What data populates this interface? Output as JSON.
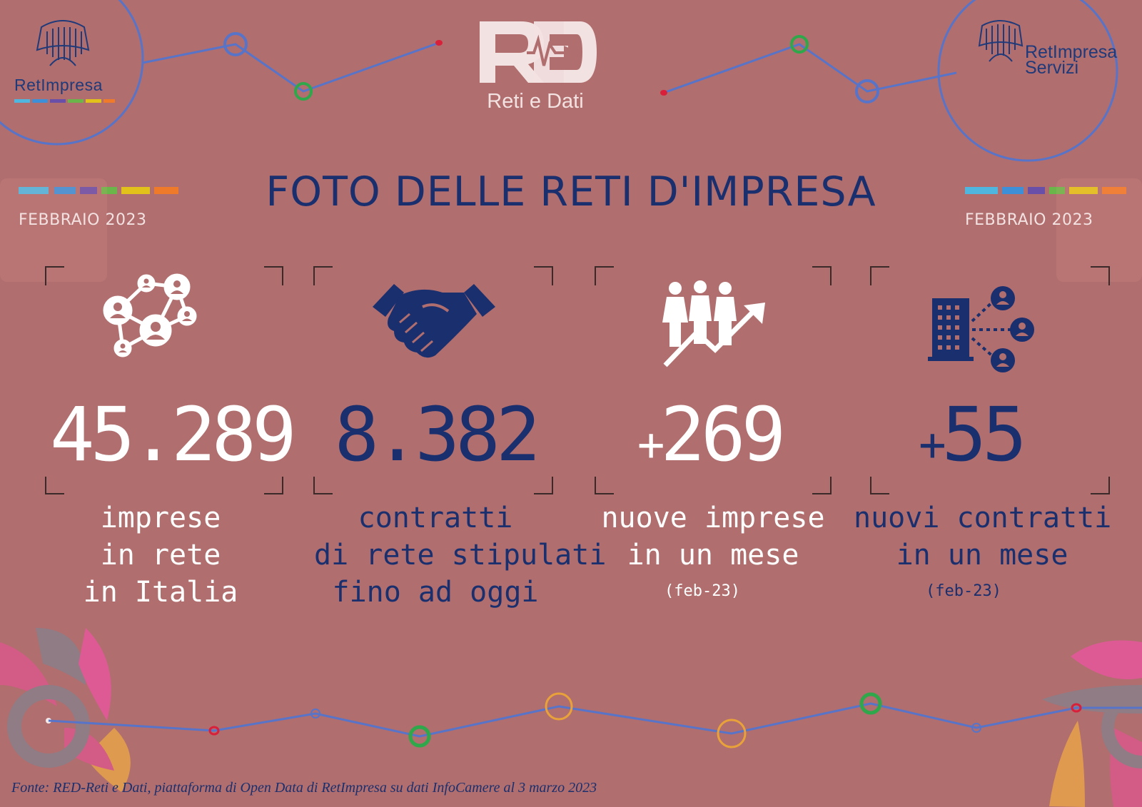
{
  "header": {
    "left_logo_text": "RetImpresa",
    "right_logo_line1": "RetImpresa",
    "right_logo_line2": "Servizi",
    "center_logo_text": "RED",
    "center_logo_subtitle": "Reti e Dati"
  },
  "title": "FOTO DELLE RETI D'IMPRESA",
  "date_left": "FEBBRAIO  2023",
  "date_right": "FEBBRAIO  2023",
  "stats": [
    {
      "value": "45.289",
      "caption": [
        "imprese",
        "in rete",
        "in Italia"
      ],
      "icon": "network-people-icon",
      "value_color": "#ffffff",
      "caption_color": "#ffffff"
    },
    {
      "value": "8.382",
      "caption": [
        "contratti",
        "di rete stipulati",
        "fino ad oggi"
      ],
      "icon": "handshake-icon",
      "value_color": "#1a2f6e",
      "caption_color": "#1a2f6e"
    },
    {
      "prefix": "+",
      "value": "269",
      "caption": [
        "nuove imprese",
        "in un mese"
      ],
      "sub": "(feb-23)",
      "icon": "people-growth-icon",
      "value_color": "#ffffff",
      "caption_color": "#ffffff"
    },
    {
      "prefix": "+",
      "value": "55",
      "caption": [
        "nuovi contratti",
        "in un mese"
      ],
      "sub": "(feb-23)",
      "icon": "building-network-icon",
      "value_color": "#1a2f6e",
      "caption_color": "#1a2f6e"
    }
  ],
  "footer": "Fonte: RED-Reti e Dati, piattaforma di Open Data di RetImpresa su dati InfoCamere al 3 marzo 2023",
  "colors": {
    "background": "#b06e6e",
    "navy": "#1a2f6e",
    "line_blue": "#5874c8",
    "accent_green": "#2ea84a",
    "accent_red": "#d8203a",
    "accent_orange": "#e9a23a"
  },
  "stripe_colors": [
    "#4fb6e0",
    "#3d8fd8",
    "#6a4fa8",
    "#6ab64a",
    "#e2c21a",
    "#ee7a2a"
  ]
}
